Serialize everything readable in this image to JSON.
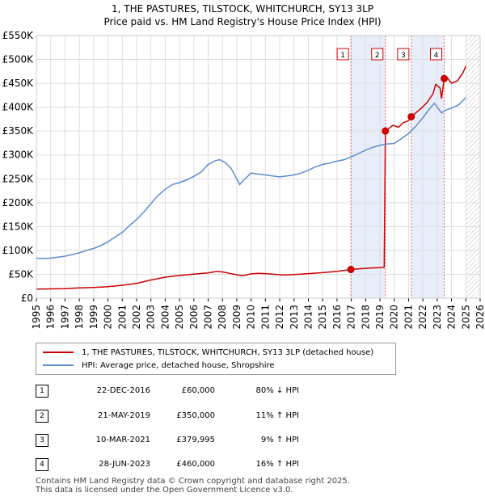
{
  "chart_data": {
    "type": "line",
    "title": "1, THE PASTURES, TILSTOCK, WHITCHURCH, SY13 3LP",
    "subtitle": "Price paid vs. HM Land Registry's House Price Index (HPI)",
    "xlabel": "",
    "ylabel": "",
    "xlim": [
      1995,
      2026
    ],
    "ylim": [
      0,
      550000
    ],
    "x_ticks": [
      "1995",
      "1996",
      "1997",
      "1998",
      "1999",
      "2000",
      "2001",
      "2002",
      "2003",
      "2004",
      "2005",
      "2006",
      "2007",
      "2008",
      "2009",
      "2010",
      "2011",
      "2012",
      "2013",
      "2014",
      "2015",
      "2016",
      "2017",
      "2018",
      "2019",
      "2020",
      "2021",
      "2022",
      "2023",
      "2024",
      "2025",
      "2026"
    ],
    "y_ticks": [
      {
        "value": 0,
        "label": "£0"
      },
      {
        "value": 50000,
        "label": "£50K"
      },
      {
        "value": 100000,
        "label": "£100K"
      },
      {
        "value": 150000,
        "label": "£150K"
      },
      {
        "value": 200000,
        "label": "£200K"
      },
      {
        "value": 250000,
        "label": "£250K"
      },
      {
        "value": 300000,
        "label": "£300K"
      },
      {
        "value": 350000,
        "label": "£350K"
      },
      {
        "value": 400000,
        "label": "£400K"
      },
      {
        "value": 450000,
        "label": "£450K"
      },
      {
        "value": 500000,
        "label": "£500K"
      },
      {
        "value": 550000,
        "label": "£550K"
      }
    ],
    "grid": true,
    "shaded_spans": [
      {
        "from": 2016.97,
        "to": 2019.38
      },
      {
        "from": 2021.19,
        "to": 2023.49
      }
    ],
    "hatched_after": 2025.0,
    "series": [
      {
        "name": "1, THE PASTURES, TILSTOCK, WHITCHURCH, SY13 3LP (detached house)",
        "color": "#cc0000",
        "x": [
          1995.0,
          1996.0,
          1997.0,
          1998.0,
          1999.0,
          2000.0,
          2001.0,
          2002.0,
          2003.0,
          2004.0,
          2005.0,
          2006.0,
          2007.0,
          2007.6,
          2008.0,
          2008.5,
          2009.0,
          2009.4,
          2010.0,
          2010.5,
          2011.0,
          2011.5,
          2012.0,
          2012.5,
          2013.0,
          2014.0,
          2015.0,
          2016.0,
          2016.97,
          2017.5,
          2018.0,
          2018.5,
          2019.0,
          2019.3,
          2019.38,
          2019.6,
          2019.9,
          2020.3,
          2020.6,
          2021.0,
          2021.19,
          2021.5,
          2021.9,
          2022.3,
          2022.7,
          2022.9,
          2023.2,
          2023.3,
          2023.49,
          2023.7,
          2024.0,
          2024.4,
          2024.8,
          2025.0
        ],
        "y": [
          19000,
          19500,
          20000,
          21500,
          22500,
          24000,
          27000,
          31000,
          38000,
          44000,
          47500,
          50500,
          53000,
          56000,
          55000,
          52000,
          49000,
          47000,
          51000,
          52000,
          51500,
          50500,
          49000,
          48500,
          49500,
          51500,
          53500,
          56000,
          60000,
          61500,
          62500,
          63500,
          64000,
          65000,
          350000,
          355000,
          362000,
          358000,
          367000,
          372000,
          379995,
          388000,
          398000,
          410000,
          428000,
          448000,
          440000,
          418000,
          460000,
          462000,
          450000,
          455000,
          472000,
          486000
        ]
      },
      {
        "name": "HPI: Average price, detached house, Shropshire",
        "color": "#5b8dd1",
        "x": [
          1995.0,
          1995.5,
          1996.0,
          1996.5,
          1997.0,
          1997.5,
          1998.0,
          1998.5,
          1999.0,
          1999.5,
          2000.0,
          2000.5,
          2001.0,
          2001.5,
          2002.0,
          2002.5,
          2003.0,
          2003.5,
          2004.0,
          2004.5,
          2005.0,
          2005.5,
          2006.0,
          2006.5,
          2007.0,
          2007.5,
          2007.8,
          2008.2,
          2008.6,
          2009.0,
          2009.2,
          2009.5,
          2010.0,
          2010.5,
          2011.0,
          2011.5,
          2012.0,
          2012.5,
          2013.0,
          2013.5,
          2014.0,
          2014.5,
          2015.0,
          2015.5,
          2016.0,
          2016.5,
          2017.0,
          2017.5,
          2018.0,
          2018.5,
          2019.0,
          2019.5,
          2020.0,
          2020.5,
          2021.0,
          2021.5,
          2022.0,
          2022.5,
          2022.8,
          2023.0,
          2023.3,
          2023.6,
          2024.0,
          2024.5,
          2025.0
        ],
        "y": [
          84000,
          83000,
          84000,
          86000,
          88000,
          91000,
          95000,
          100000,
          104000,
          110000,
          118000,
          128000,
          138000,
          152000,
          165000,
          180000,
          198000,
          215000,
          228000,
          238000,
          242000,
          248000,
          255000,
          264000,
          280000,
          288000,
          290000,
          284000,
          272000,
          250000,
          238000,
          248000,
          262000,
          260000,
          258000,
          256000,
          254000,
          256000,
          258000,
          262000,
          268000,
          275000,
          280000,
          283000,
          287000,
          290000,
          296000,
          303000,
          310000,
          316000,
          320000,
          323000,
          324000,
          334000,
          345000,
          360000,
          378000,
          398000,
          408000,
          400000,
          388000,
          394000,
          398000,
          405000,
          420000
        ]
      }
    ],
    "markers": [
      {
        "label": "1",
        "x": 2016.97,
        "y": 60000
      },
      {
        "label": "2",
        "x": 2019.38,
        "y": 350000
      },
      {
        "label": "3",
        "x": 2021.19,
        "y": 379995
      },
      {
        "label": "4",
        "x": 2023.49,
        "y": 460000
      }
    ]
  },
  "legend": {
    "property_label": "1, THE PASTURES, TILSTOCK, WHITCHURCH, SY13 3LP (detached house)",
    "hpi_label": "HPI: Average price, detached house, Shropshire",
    "property_color": "#cc0000",
    "hpi_color": "#5b8dd1"
  },
  "transactions": [
    {
      "num": "1",
      "date": "22-DEC-2016",
      "price": "£60,000",
      "hpi": "80% ↓ HPI"
    },
    {
      "num": "2",
      "date": "21-MAY-2019",
      "price": "£350,000",
      "hpi": "11% ↑ HPI"
    },
    {
      "num": "3",
      "date": "10-MAR-2021",
      "price": "£379,995",
      "hpi": "9% ↑ HPI"
    },
    {
      "num": "4",
      "date": "28-JUN-2023",
      "price": "£460,000",
      "hpi": "16% ↑ HPI"
    }
  ],
  "footer": {
    "line1": "Contains HM Land Registry data © Crown copyright and database right 2025.",
    "line2": "This data is licensed under the Open Government Licence v3.0."
  }
}
